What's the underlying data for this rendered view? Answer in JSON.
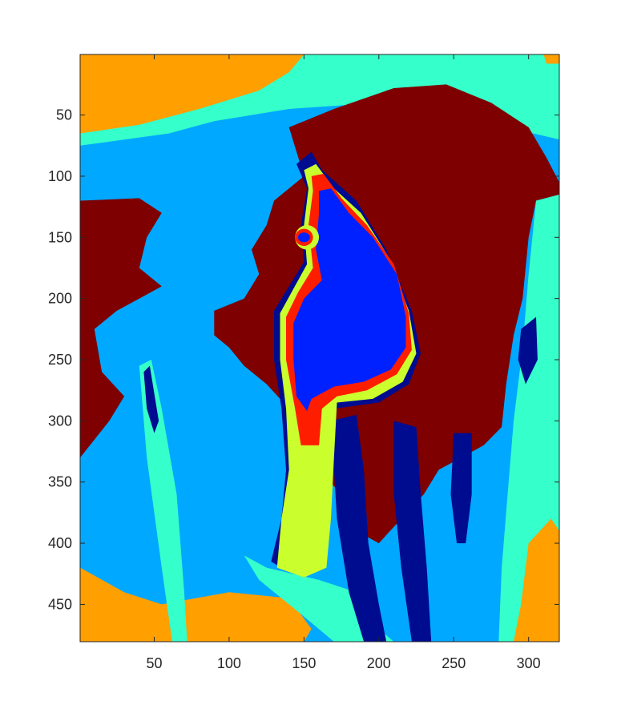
{
  "chart_data": {
    "type": "heatmap",
    "title": "",
    "xlabel": "",
    "ylabel": "",
    "xlim": [
      0.5,
      320.5
    ],
    "ylim": [
      0.5,
      480.5
    ],
    "y_reversed": true,
    "x_ticks": [
      50,
      100,
      150,
      200,
      250,
      300
    ],
    "y_ticks": [
      50,
      100,
      150,
      200,
      250,
      300,
      350,
      400,
      450
    ],
    "grid": false,
    "legend": "none",
    "colormap": "jet",
    "palette": {
      "dark_red": "#7f0000",
      "orange": "#ff9f00",
      "light_blue": "#00a8ff",
      "cyan": "#35ffca",
      "blue": "#0021ff",
      "navy": "#000c8f",
      "red": "#ff1d00",
      "yellow": "#caff2d"
    },
    "regions_note_free": true
  }
}
